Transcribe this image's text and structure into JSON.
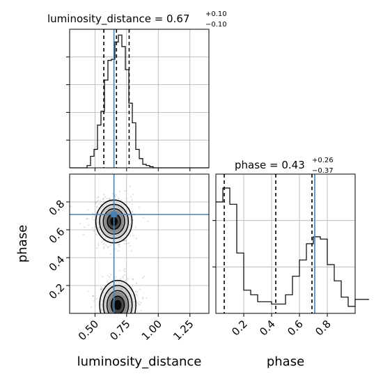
{
  "chart_data": {
    "type": "corner",
    "colors": {
      "truth": "#4682b4",
      "hist": "#000000",
      "grid": "#b0b0b0",
      "scatter": "#888888"
    },
    "parameters": [
      {
        "name": "luminosity_distance",
        "range": [
          0.3,
          1.4
        ],
        "ticks": [
          "0.50",
          "0.75",
          "1.00",
          "1.25"
        ],
        "tick_values": [
          0.5,
          0.75,
          1.0,
          1.25
        ]
      },
      {
        "name": "phase",
        "range": [
          0.0,
          1.0
        ],
        "ticks_y": [
          "0.2",
          "0.4",
          "0.6",
          "0.8"
        ],
        "ticks_x": [
          "0.2",
          "0.4",
          "0.6",
          "0.8"
        ],
        "tick_values": [
          0.2,
          0.4,
          0.6,
          0.8
        ]
      }
    ],
    "marginals": [
      {
        "param": "luminosity_distance",
        "title_prefix": "luminosity_distance = 0.67",
        "title_sup": "+0.10",
        "title_sub": "−0.10",
        "quantiles": [
          0.57,
          0.67,
          0.77
        ],
        "truth": 0.65,
        "bins_start": 0.3,
        "bin_width": 0.0275,
        "counts": [
          0,
          0,
          0,
          0,
          0,
          0.2,
          1,
          1.6,
          3.7,
          4.9,
          7.6,
          9.3,
          9.4,
          10.9,
          11.5,
          10.5,
          8.5,
          5.6,
          3.9,
          1.6,
          0.8,
          0.3,
          0.2,
          0.1,
          0,
          0,
          0,
          0,
          0,
          0,
          0,
          0,
          0,
          0,
          0,
          0,
          0,
          0,
          0,
          0
        ],
        "ylim": [
          0,
          12
        ]
      },
      {
        "param": "phase",
        "title_prefix": "phase = 0.43",
        "title_sup": "+0.26",
        "title_sub": "−0.37",
        "quantiles": [
          0.06,
          0.43,
          0.69
        ],
        "truth": 0.71,
        "bins_start": 0.0,
        "bin_width": 0.05,
        "counts": [
          4.8,
          5.4,
          4.7,
          2.6,
          1.0,
          0.8,
          0.5,
          0.5,
          0.4,
          0.4,
          0.8,
          1.6,
          2.3,
          3.0,
          3.3,
          3.2,
          2.1,
          1.4,
          0.7,
          0.3,
          0.6,
          0.6
        ],
        "ylim": [
          0,
          6
        ]
      }
    ],
    "joint": {
      "x_param": "luminosity_distance",
      "y_param": "phase",
      "truth": [
        0.65,
        0.71
      ],
      "clusters": [
        {
          "x": 0.65,
          "y": 0.66,
          "sx": 0.065,
          "sy": 0.07,
          "weight": 0.5
        },
        {
          "x": 0.68,
          "y": 0.06,
          "sx": 0.065,
          "sy": 0.08,
          "weight": 0.5
        }
      ]
    },
    "xlabel_left": "luminosity_distance",
    "xlabel_right": "phase",
    "ylabel_left": "phase",
    "grid": true,
    "legend": "none"
  }
}
